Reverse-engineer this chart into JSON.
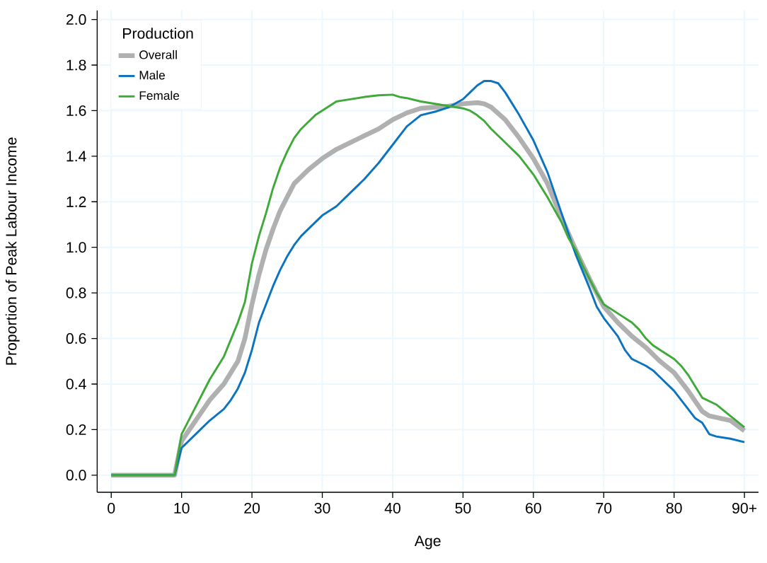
{
  "chart_data": {
    "type": "line",
    "xlabel": "Age",
    "ylabel": "Proportion of Peak Labour Income",
    "legend_title": "Production",
    "legend": "top left",
    "grid": true,
    "line_style": "solid",
    "marker": "none",
    "xlim": [
      -2,
      92
    ],
    "ylim": [
      -0.075,
      2.04
    ],
    "xticks": [
      0,
      10,
      20,
      30,
      40,
      50,
      60,
      70,
      80,
      {
        "value": 90,
        "label": "90+"
      }
    ],
    "yticks": [
      {
        "value": 0,
        "label": "0.0"
      },
      {
        "value": 0.2,
        "label": "0.2"
      },
      {
        "value": 0.4,
        "label": "0.4"
      },
      {
        "value": 0.6,
        "label": "0.6"
      },
      {
        "value": 0.8,
        "label": "0.8"
      },
      {
        "value": 1.0,
        "label": "1.0"
      },
      {
        "value": 1.2,
        "label": "1.2"
      },
      {
        "value": 1.4,
        "label": "1.4"
      },
      {
        "value": 1.6,
        "label": "1.6"
      },
      {
        "value": 1.8,
        "label": "1.8"
      },
      {
        "value": 2.0,
        "label": "2.0"
      }
    ],
    "series": [
      {
        "name": "Overall",
        "color": "#b0b0b0",
        "x": [
          0,
          9,
          10,
          12,
          14,
          16,
          18,
          19,
          20,
          21,
          22,
          23,
          24,
          25,
          26,
          27,
          28,
          30,
          32,
          34,
          36,
          38,
          40,
          42,
          44,
          46,
          48,
          50,
          52,
          53,
          54,
          56,
          58,
          60,
          62,
          64,
          66,
          68,
          70,
          72,
          74,
          76,
          78,
          80,
          82,
          84,
          85,
          88,
          90
        ],
        "values": [
          0,
          0,
          0.15,
          0.24,
          0.33,
          0.4,
          0.5,
          0.6,
          0.75,
          0.88,
          0.99,
          1.08,
          1.16,
          1.22,
          1.28,
          1.31,
          1.34,
          1.39,
          1.43,
          1.46,
          1.49,
          1.52,
          1.56,
          1.59,
          1.61,
          1.615,
          1.62,
          1.63,
          1.635,
          1.63,
          1.615,
          1.56,
          1.48,
          1.39,
          1.28,
          1.13,
          0.99,
          0.86,
          0.74,
          0.67,
          0.61,
          0.56,
          0.5,
          0.45,
          0.37,
          0.28,
          0.26,
          0.24,
          0.195
        ]
      },
      {
        "name": "Male",
        "color": "#0b73c0",
        "x": [
          0,
          9,
          10,
          12,
          14,
          16,
          17,
          18,
          19,
          20,
          21,
          22,
          23,
          24,
          25,
          26,
          27,
          28,
          30,
          32,
          34,
          36,
          38,
          40,
          42,
          44,
          46,
          48,
          50,
          51,
          52,
          53,
          54,
          55,
          56,
          58,
          60,
          62,
          64,
          66,
          68,
          69,
          70,
          72,
          73,
          74,
          76,
          77,
          78,
          80,
          82,
          83,
          84,
          85,
          86,
          88,
          90
        ],
        "values": [
          0,
          0,
          0.12,
          0.18,
          0.24,
          0.29,
          0.33,
          0.38,
          0.45,
          0.55,
          0.67,
          0.75,
          0.83,
          0.9,
          0.96,
          1.01,
          1.05,
          1.08,
          1.14,
          1.18,
          1.24,
          1.3,
          1.37,
          1.45,
          1.53,
          1.58,
          1.595,
          1.615,
          1.65,
          1.68,
          1.71,
          1.73,
          1.73,
          1.72,
          1.68,
          1.58,
          1.47,
          1.33,
          1.15,
          0.97,
          0.82,
          0.74,
          0.69,
          0.61,
          0.55,
          0.51,
          0.48,
          0.46,
          0.43,
          0.37,
          0.29,
          0.25,
          0.23,
          0.18,
          0.17,
          0.16,
          0.145
        ]
      },
      {
        "name": "Female",
        "color": "#3fa93a",
        "x": [
          0,
          9,
          10,
          12,
          14,
          16,
          18,
          19,
          20,
          21,
          22,
          23,
          24,
          25,
          26,
          27,
          28,
          29,
          30,
          31,
          32,
          33,
          34,
          36,
          38,
          40,
          41,
          42,
          44,
          46,
          48,
          50,
          51,
          52,
          53,
          54,
          56,
          58,
          60,
          62,
          64,
          65,
          66,
          67,
          68,
          69,
          70,
          72,
          74,
          75,
          76,
          77,
          78,
          80,
          81,
          82,
          83,
          84,
          86,
          88,
          90
        ],
        "values": [
          0,
          0,
          0.18,
          0.3,
          0.42,
          0.52,
          0.67,
          0.76,
          0.93,
          1.05,
          1.15,
          1.26,
          1.35,
          1.42,
          1.48,
          1.52,
          1.55,
          1.58,
          1.6,
          1.62,
          1.64,
          1.645,
          1.65,
          1.66,
          1.667,
          1.67,
          1.66,
          1.655,
          1.64,
          1.63,
          1.62,
          1.61,
          1.6,
          1.58,
          1.555,
          1.52,
          1.46,
          1.4,
          1.32,
          1.22,
          1.11,
          1.04,
          0.99,
          0.92,
          0.86,
          0.8,
          0.75,
          0.71,
          0.67,
          0.64,
          0.6,
          0.57,
          0.55,
          0.51,
          0.48,
          0.44,
          0.39,
          0.34,
          0.31,
          0.26,
          0.21
        ]
      }
    ]
  }
}
